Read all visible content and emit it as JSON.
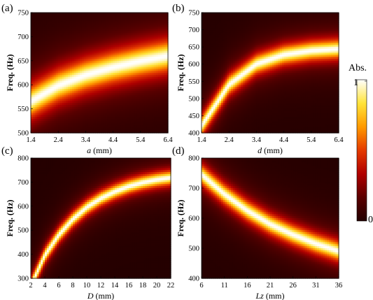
{
  "colorbar": {
    "title": "Abs.",
    "max_label": "1",
    "min_label": "0",
    "colormap": [
      "#230000",
      "#5a0000",
      "#b00000",
      "#e53a00",
      "#ff9a00",
      "#ffe43a",
      "#ffffff"
    ]
  },
  "chart_data": [
    {
      "type": "heatmap",
      "panel_label": "(a)",
      "xlabel_var": "a",
      "xlabel_unit": " (mm)",
      "ylabel": "Freq. (Hz)",
      "xlim": [
        1.4,
        6.4
      ],
      "ylim": [
        500,
        750
      ],
      "xticks": [
        "1.4",
        "2.4",
        "3.4",
        "4.4",
        "5.4",
        "6.4"
      ],
      "yticks": [
        "500",
        "550",
        "600",
        "650",
        "700",
        "750"
      ],
      "ridge": {
        "x": [
          1.4,
          2.4,
          3.4,
          4.4,
          5.4,
          6.4
        ],
        "y": [
          565,
          598,
          620,
          636,
          649,
          660
        ]
      },
      "peak_width_hz": 30
    },
    {
      "type": "heatmap",
      "panel_label": "(b)",
      "xlabel_var": "d",
      "xlabel_unit": " (mm)",
      "ylabel": "Freq. (Hz)",
      "xlim": [
        1.4,
        6.4
      ],
      "ylim": [
        400,
        750
      ],
      "xticks": [
        "1.4",
        "2.4",
        "3.4",
        "4.4",
        "5.4",
        "6.4"
      ],
      "yticks": [
        "400",
        "450",
        "500",
        "550",
        "600",
        "650",
        "700",
        "750"
      ],
      "ridge": {
        "x": [
          1.4,
          2.4,
          3.4,
          4.4,
          5.4,
          6.4
        ],
        "y": [
          420,
          540,
          600,
          627,
          639,
          644
        ]
      },
      "peak_width_hz": 26
    },
    {
      "type": "heatmap",
      "panel_label": "(c)",
      "xlabel_var": "D",
      "xlabel_unit": " (mm)",
      "ylabel": "Freq. (Hz)",
      "xlim": [
        2,
        22
      ],
      "ylim": [
        300,
        800
      ],
      "xticks": [
        "2",
        "4",
        "6",
        "8",
        "10",
        "12",
        "14",
        "16",
        "18",
        "20",
        "22"
      ],
      "yticks": [
        "300",
        "400",
        "500",
        "600",
        "700",
        "800"
      ],
      "ridge": {
        "x": [
          2.5,
          4,
          6,
          8,
          10,
          12,
          14,
          16,
          18,
          20,
          22
        ],
        "y": [
          300,
          395,
          480,
          545,
          595,
          632,
          660,
          682,
          698,
          710,
          718
        ]
      },
      "peak_width_hz": 28
    },
    {
      "type": "heatmap",
      "panel_label": "(d)",
      "xlabel_var": "Lz",
      "xlabel_unit": " (mm)",
      "ylabel": "Freq. (Hz)",
      "xlim": [
        6,
        36
      ],
      "ylim": [
        400,
        800
      ],
      "xticks": [
        "6",
        "11",
        "16",
        "21",
        "26",
        "31",
        "36"
      ],
      "yticks": [
        "400",
        "500",
        "600",
        "700",
        "800"
      ],
      "ridge": {
        "x": [
          6,
          11,
          16,
          21,
          26,
          31,
          36
        ],
        "y": [
          745,
          680,
          625,
          580,
          545,
          515,
          490
        ]
      },
      "peak_width_hz": 30
    }
  ]
}
